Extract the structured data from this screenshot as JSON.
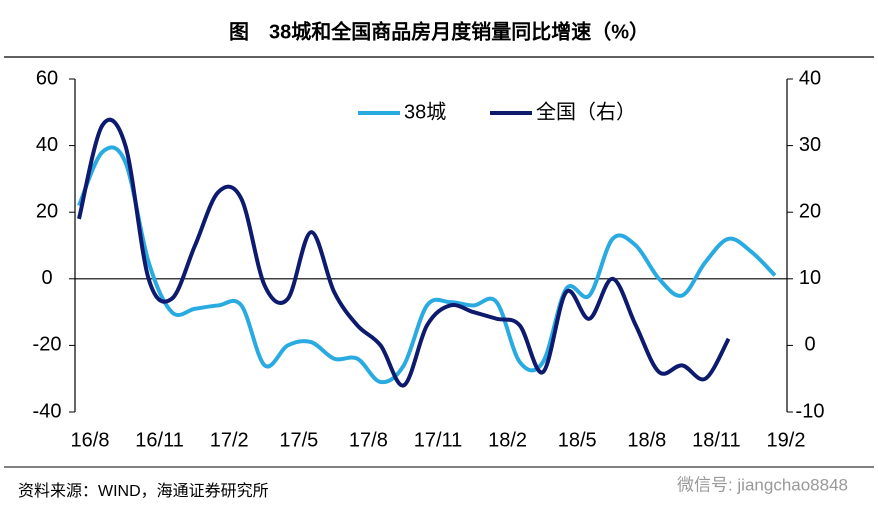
{
  "chart_data": {
    "type": "line",
    "title": "图　38城和全国商品房月度销量同比增速（%）",
    "source": "资料来源：WIND，海通证券研究所",
    "watermark": "微信号: jiangchao8848",
    "categories": [
      "16/8",
      null,
      null,
      "16/11",
      null,
      null,
      "17/2",
      null,
      null,
      "17/5",
      null,
      null,
      "17/8",
      null,
      null,
      "17/11",
      null,
      null,
      "18/2",
      null,
      null,
      "18/5",
      null,
      null,
      "18/8",
      null,
      null,
      "18/11",
      null,
      null,
      "19/2"
    ],
    "series": [
      {
        "name": "38城",
        "color": "#29abe2",
        "values": [
          22,
          38,
          35,
          5,
          -10,
          -9,
          -8,
          -8,
          -26,
          -20,
          -19,
          -24,
          -24,
          -31,
          -26,
          -8,
          -7,
          -8,
          -7,
          -25,
          -25,
          -3,
          -5,
          12,
          10,
          0,
          -5,
          5,
          12,
          8,
          1
        ]
      },
      {
        "name": "全国（右）",
        "color": "#0d1a6e",
        "axis": "y2",
        "values": [
          19,
          33,
          30,
          10,
          7,
          15,
          23,
          22,
          9,
          7,
          17,
          8,
          3,
          0,
          -6,
          3,
          6,
          5,
          4,
          3,
          -4,
          8,
          4,
          10,
          3,
          -4,
          -3,
          -5,
          1,
          null,
          null
        ]
      }
    ],
    "ylim": [
      -40,
      60
    ],
    "yticks": [
      -40,
      -20,
      0,
      20,
      40,
      60
    ],
    "y2lim": [
      -10,
      40
    ],
    "y2ticks": [
      -10,
      0,
      10,
      20,
      30,
      40
    ],
    "legend": "top"
  }
}
